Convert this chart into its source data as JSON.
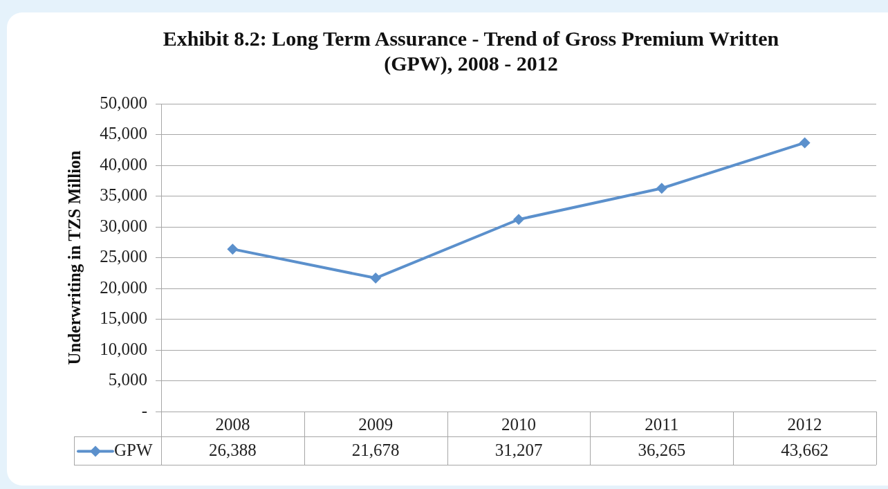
{
  "chart_data": {
    "type": "line",
    "title": "Exhibit 8.2: Long Term Assurance - Trend of Gross Premium Written (GPW), 2008 - 2012",
    "ylabel": "Underwriting in TZS Million",
    "categories": [
      "2008",
      "2009",
      "2010",
      "2011",
      "2012"
    ],
    "series": [
      {
        "name": "GPW",
        "color": "#5b90cc",
        "values": [
          26388,
          21678,
          31207,
          36265,
          43662
        ],
        "value_labels": [
          "26,388",
          "21,678",
          "31,207",
          "36,265",
          "43,662"
        ]
      }
    ],
    "ylim": [
      0,
      50000
    ],
    "yticks": [
      {
        "value": 0,
        "label": "-"
      },
      {
        "value": 5000,
        "label": "5,000"
      },
      {
        "value": 10000,
        "label": "10,000"
      },
      {
        "value": 15000,
        "label": "15,000"
      },
      {
        "value": 20000,
        "label": "20,000"
      },
      {
        "value": 25000,
        "label": "25,000"
      },
      {
        "value": 30000,
        "label": "30,000"
      },
      {
        "value": 35000,
        "label": "35,000"
      },
      {
        "value": 40000,
        "label": "40,000"
      },
      {
        "value": 45000,
        "label": "45,000"
      },
      {
        "value": 50000,
        "label": "50,000"
      }
    ],
    "grid": "y",
    "legend": "bottom left",
    "marker": "diamond"
  }
}
